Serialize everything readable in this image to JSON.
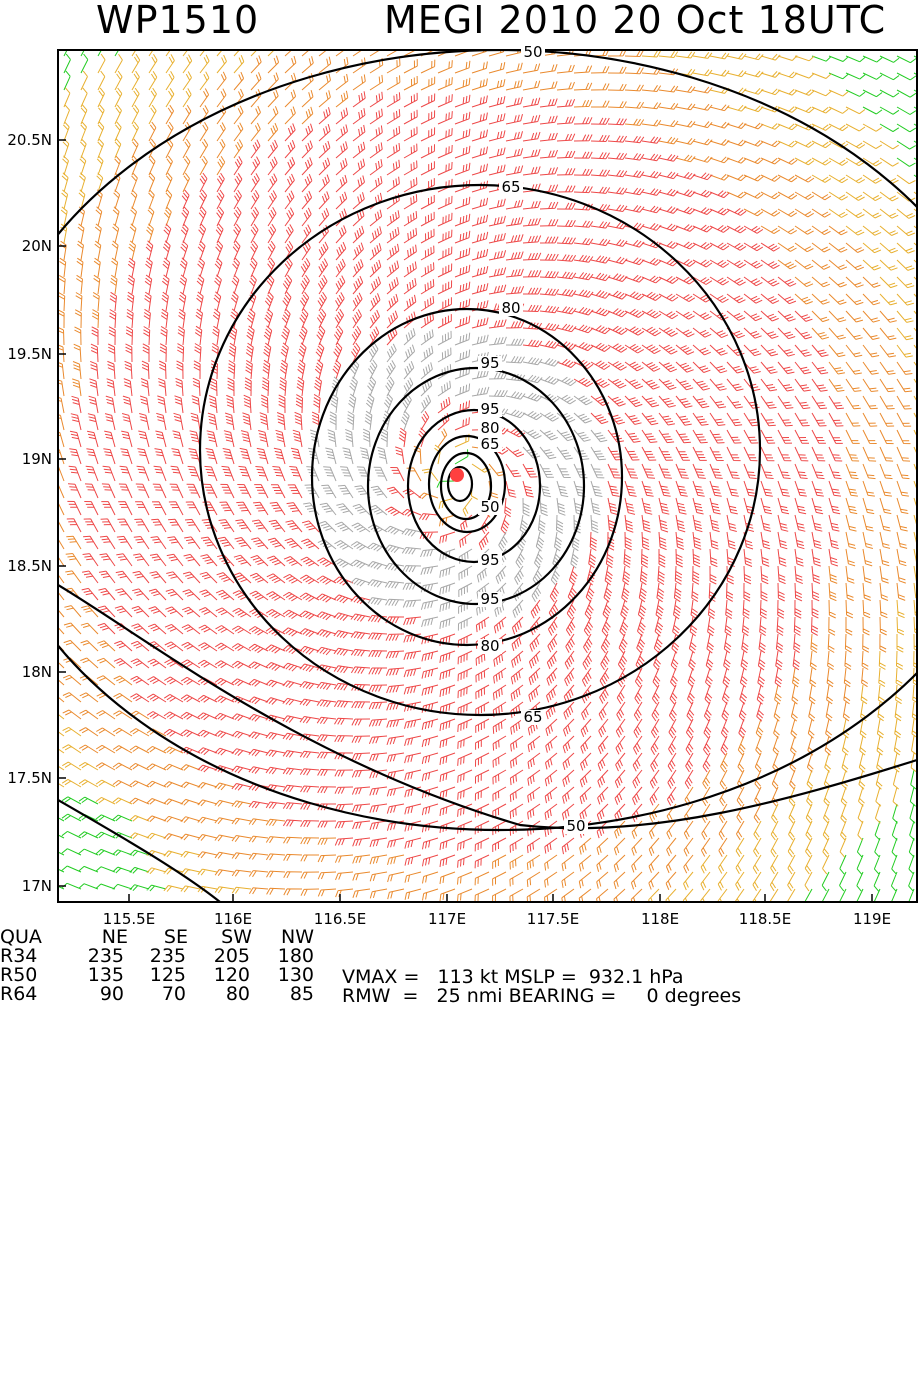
{
  "header": {
    "storm_id": "WP1510",
    "storm_title": "MEGI 2010 20 Oct 18UTC"
  },
  "map": {
    "lon_labels": [
      "115.5E",
      "116E",
      "116.5E",
      "117E",
      "117.5E",
      "118E",
      "118.5E",
      "119E"
    ],
    "lat_labels": [
      "20.5N",
      "20N",
      "19.5N",
      "19N",
      "18.5N",
      "18N",
      "17.5N",
      "17N"
    ],
    "contour_labels": [
      {
        "id": "c50",
        "text": "50"
      },
      {
        "id": "c65",
        "text": "65"
      },
      {
        "id": "c80",
        "text": "80"
      },
      {
        "id": "c95",
        "text": "95"
      }
    ],
    "center_marker_color": "#ff4040",
    "barb_colors": {
      "green": "#22cc22",
      "gold": "#e8b030",
      "orange": "#ea8a2e",
      "red": "#ee4848",
      "gray": "#a8a8a8"
    }
  },
  "radii_table": {
    "header": [
      "QUA",
      "NE",
      "SE",
      "SW",
      "NW"
    ],
    "rows": [
      {
        "label": "R34",
        "values": [
          "235",
          "235",
          "205",
          "180"
        ]
      },
      {
        "label": "R50",
        "values": [
          "135",
          "125",
          "120",
          "130"
        ]
      },
      {
        "label": "R64",
        "values": [
          "90",
          "70",
          "80",
          "85"
        ]
      }
    ]
  },
  "stats": {
    "line1": "VMAX =   113 kt MSLP =  932.1 hPa",
    "line2": "RMW  =   25 nmi BEARING =     0 degrees"
  }
}
